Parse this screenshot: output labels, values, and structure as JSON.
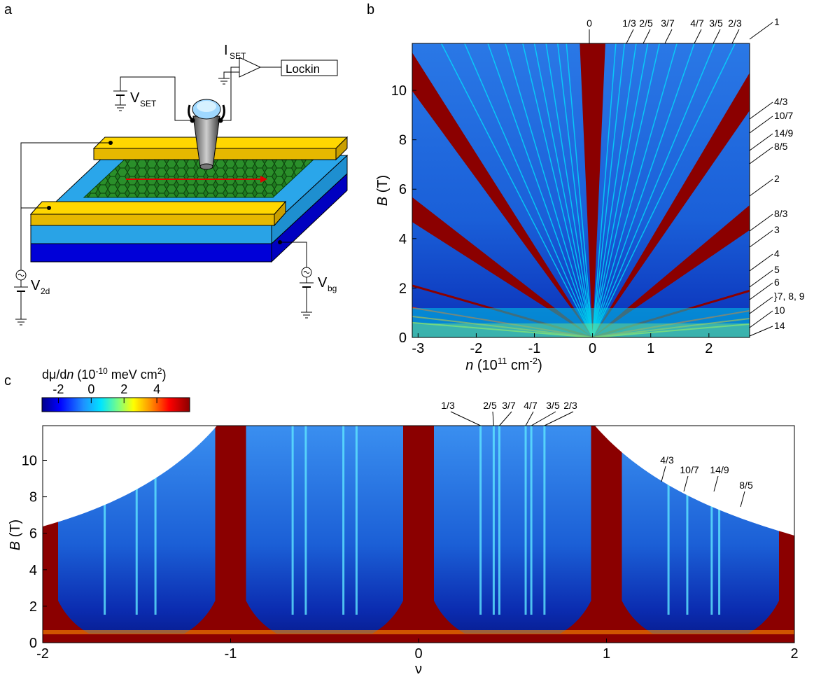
{
  "panels": {
    "a": "a",
    "b": "b",
    "c": "c"
  },
  "schematic": {
    "iset_label": "I",
    "iset_sub": "SET",
    "lockin_label": "Lockin",
    "vset_label": "V",
    "vset_sub": "SET",
    "v2d_label": "V",
    "v2d_sub": "2d",
    "vbg_label": "V",
    "vbg_sub": "bg"
  },
  "chart_data": [
    {
      "type": "heatmap",
      "panel": "b",
      "xlabel_main": "n",
      "xlabel_rest": " (10",
      "xlabel_exp": "11",
      "xlabel_unit": " cm",
      "xlabel_unit_exp": "-2",
      "xlabel_close": ")",
      "ylabel_main": "B",
      "ylabel_rest": " (T)",
      "xlim": [
        -3.1,
        2.7
      ],
      "ylim": [
        0,
        11.9
      ],
      "xticks": [
        "-3",
        "-2",
        "-1",
        "0",
        "1",
        "2"
      ],
      "xtick_values": [
        -3,
        -2,
        -1,
        0,
        1,
        2
      ],
      "yticks": [
        "0",
        "2",
        "4",
        "6",
        "8",
        "10"
      ],
      "ytick_values": [
        0,
        2,
        4,
        6,
        8,
        10
      ],
      "colorscale": [
        "#00008b",
        "#0044ff",
        "#1e90ff",
        "#00e5ff",
        "#7fff7f",
        "#ffff00",
        "#ff8c00",
        "#ff0000",
        "#8b0000"
      ],
      "top_labels": [
        "0",
        "1/3",
        "2/5",
        "3/7",
        "4/7",
        "3/5",
        "2/3"
      ],
      "right_labels": [
        "1",
        "4/3",
        "10/7",
        "14/9",
        "8/5",
        "2",
        "8/3",
        "3",
        "4",
        "5",
        "6",
        "}7, 8, 9",
        "10",
        "14"
      ]
    },
    {
      "type": "heatmap",
      "panel": "c",
      "xlabel": "ν",
      "ylabel_main": "B",
      "ylabel_rest": " (T)",
      "xlim": [
        -2,
        2
      ],
      "ylim": [
        0,
        11.9
      ],
      "xticks": [
        "-2",
        "-1",
        "0",
        "1",
        "2"
      ],
      "xtick_values": [
        -2,
        -1,
        0,
        1,
        2
      ],
      "yticks": [
        "0",
        "2",
        "4",
        "6",
        "8",
        "10"
      ],
      "ytick_values": [
        0,
        2,
        4,
        6,
        8,
        10
      ],
      "colorbar": {
        "label_pre": "dμ/d",
        "label_n": "n",
        "label_mid": " (10",
        "label_exp": "-10",
        "label_unit": " meV cm",
        "label_unit_exp": "2",
        "label_close": ")",
        "ticks": [
          "-2",
          "0",
          "2",
          "4"
        ],
        "tick_values": [
          -2,
          0,
          2,
          4
        ],
        "range": [
          -3,
          6
        ]
      },
      "top_labels": [
        "1/3",
        "2/5",
        "3/7",
        "4/7",
        "3/5",
        "2/3"
      ],
      "inset_labels": [
        "4/3",
        "10/7",
        "14/9",
        "8/5"
      ]
    }
  ]
}
